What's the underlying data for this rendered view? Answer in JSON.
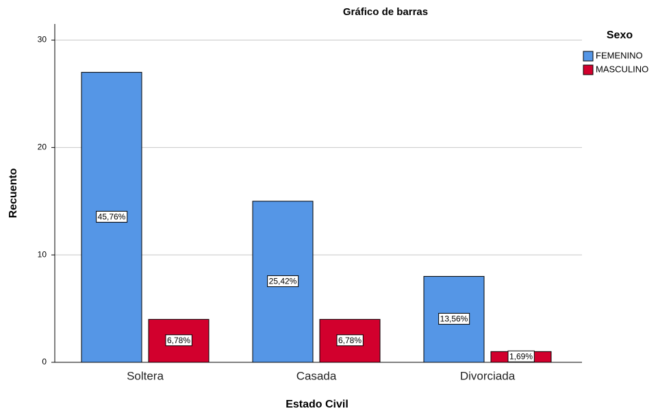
{
  "chart_data": {
    "type": "bar",
    "title": "Gráfico de barras",
    "x_label": "Estado Civil",
    "y_label": "Recuento",
    "legend_title": "Sexo",
    "categories": [
      "Soltera",
      "Casada",
      "Divorciada"
    ],
    "series": [
      {
        "name": "FEMENINO",
        "color": "#5596e6",
        "values": [
          27,
          15,
          8
        ],
        "percent_labels": [
          "45,76%",
          "25,42%",
          "13,56%"
        ]
      },
      {
        "name": "MASCULINO",
        "color": "#d2002d",
        "values": [
          4,
          4,
          1
        ],
        "percent_labels": [
          "6,78%",
          "6,78%",
          "1,69%"
        ]
      }
    ],
    "ylim": [
      0,
      31.5
    ],
    "yticks": [
      0,
      10,
      20,
      30
    ],
    "grid": true,
    "legend": "right"
  }
}
